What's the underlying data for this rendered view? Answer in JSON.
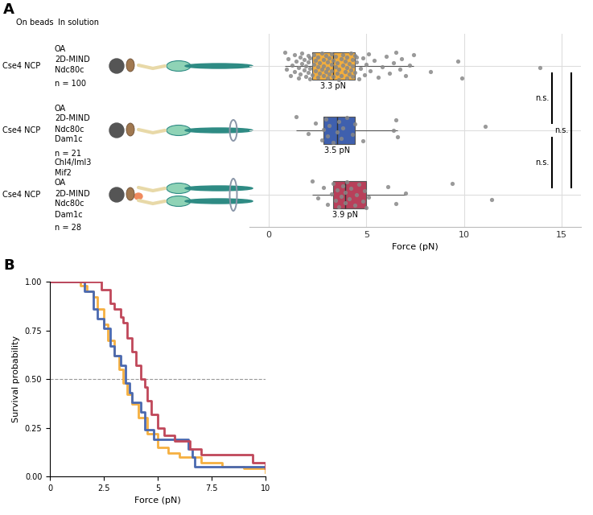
{
  "chart_data": [
    {
      "type": "box",
      "panel_label": "A",
      "orientation": "horizontal",
      "column_headers": [
        "On beads",
        "In solution"
      ],
      "xlabel": "Force (pN)",
      "xlim": [
        -1,
        16
      ],
      "xticks": [
        0,
        5,
        10,
        15
      ],
      "grid": true,
      "tick_labels": "x",
      "significance_labels": [
        "n.s.",
        "n.s.",
        "n.s."
      ],
      "series": [
        {
          "on_beads": "Cse4 NCP",
          "in_solution": [
            "OA",
            "2D-MIND",
            "Ndc80c"
          ],
          "n_label": "n = 100",
          "color": "#F3AE3D",
          "box": {
            "whisker_low": 0.8,
            "q1": 2.2,
            "median": 3.3,
            "q3": 4.4,
            "whisker_high": 7.4
          },
          "median_label": "3.3 pN",
          "values": [
            0.8,
            0.9,
            1.0,
            1.1,
            1.2,
            1.3,
            1.3,
            1.4,
            1.5,
            1.5,
            1.6,
            1.6,
            1.7,
            1.7,
            1.8,
            1.8,
            1.9,
            1.9,
            2.0,
            2.0,
            2.0,
            2.1,
            2.1,
            2.1,
            2.2,
            2.3,
            2.3,
            2.4,
            2.4,
            2.5,
            2.5,
            2.5,
            2.6,
            2.6,
            2.7,
            2.7,
            2.8,
            2.8,
            2.8,
            2.9,
            2.9,
            3.0,
            3.0,
            3.0,
            3.1,
            3.1,
            3.2,
            3.2,
            3.2,
            3.3,
            3.3,
            3.4,
            3.4,
            3.5,
            3.5,
            3.6,
            3.6,
            3.7,
            3.7,
            3.8,
            3.8,
            3.9,
            3.9,
            4.0,
            4.0,
            4.0,
            4.1,
            4.1,
            4.2,
            4.2,
            4.3,
            4.3,
            4.3,
            4.4,
            4.4,
            4.5,
            4.6,
            4.7,
            4.8,
            4.9,
            5.0,
            5.1,
            5.2,
            5.4,
            5.6,
            5.8,
            6.0,
            6.2,
            6.4,
            6.5,
            6.7,
            6.8,
            7.0,
            7.2,
            7.4,
            8.3,
            9.7,
            9.9,
            13.9,
            4.5
          ]
        },
        {
          "on_beads": "Cse4 NCP",
          "in_solution": [
            "OA",
            "2D-MIND",
            "Ndc80c",
            "Dam1c"
          ],
          "n_label": "n = 21",
          "color": "#3F60AE",
          "box": {
            "whisker_low": 1.4,
            "q1": 2.8,
            "median": 3.5,
            "q3": 4.4,
            "whisker_high": 6.6
          },
          "median_label": "3.5 pN",
          "values": [
            1.4,
            2.0,
            2.4,
            2.7,
            2.8,
            2.9,
            3.0,
            3.1,
            3.3,
            3.5,
            3.6,
            3.7,
            3.8,
            4.0,
            4.3,
            4.4,
            4.8,
            6.4,
            6.5,
            6.6,
            11.1
          ]
        },
        {
          "on_beads": "Cse4 NCP",
          "in_solution": [
            "Chl4/Iml3",
            "Mif2",
            "OA",
            "2D-MIND",
            "Ndc80c",
            "Dam1c"
          ],
          "n_label": "n = 28",
          "color": "#B8405A",
          "box": {
            "whisker_low": 2.2,
            "q1": 3.3,
            "median": 3.9,
            "q3": 5.0,
            "whisker_high": 7.0
          },
          "median_label": "3.9 pN",
          "values": [
            2.2,
            2.5,
            2.8,
            3.0,
            3.2,
            3.3,
            3.4,
            3.5,
            3.6,
            3.7,
            3.8,
            3.9,
            3.9,
            4.0,
            4.1,
            4.2,
            4.4,
            4.5,
            4.6,
            4.8,
            4.9,
            5.0,
            5.1,
            6.1,
            6.5,
            7.0,
            9.4,
            11.4
          ]
        }
      ]
    },
    {
      "type": "step",
      "panel_label": "B",
      "xlabel": "Force (pN)",
      "ylabel": "Survival probability",
      "xlim": [
        0,
        10
      ],
      "xticks": [
        0,
        2.5,
        5,
        7.5,
        10
      ],
      "ylim": [
        0,
        1
      ],
      "yticks": [
        {
          "value": 0,
          "label": "0.00"
        },
        {
          "value": 0.25,
          "label": "0.25"
        },
        {
          "value": 0.5,
          "label": "0.50"
        },
        {
          "value": 0.75,
          "label": "0.75"
        },
        {
          "value": 1,
          "label": "1.00"
        }
      ],
      "reference_line": 0.5,
      "series": [
        {
          "color": "#F5B041",
          "x": [
            0,
            1.4,
            1.7,
            2.0,
            2.2,
            2.5,
            2.7,
            3.0,
            3.2,
            3.4,
            3.6,
            3.8,
            4.1,
            4.5,
            5.0,
            5.5,
            6.0,
            7.0,
            8.0,
            9.0,
            10.0
          ],
          "values": [
            1.0,
            0.98,
            0.95,
            0.92,
            0.86,
            0.78,
            0.7,
            0.62,
            0.55,
            0.48,
            0.42,
            0.37,
            0.3,
            0.22,
            0.15,
            0.12,
            0.1,
            0.07,
            0.05,
            0.04,
            0.02
          ]
        },
        {
          "color": "#4A69B0",
          "x": [
            0,
            1.6,
            2.0,
            2.2,
            2.5,
            2.8,
            3.0,
            3.3,
            3.5,
            3.7,
            3.8,
            4.2,
            4.4,
            4.8,
            6.4,
            6.6,
            6.7,
            10.0
          ],
          "values": [
            1.0,
            0.95,
            0.86,
            0.81,
            0.76,
            0.67,
            0.62,
            0.57,
            0.48,
            0.43,
            0.38,
            0.33,
            0.24,
            0.19,
            0.14,
            0.1,
            0.05,
            0.05
          ]
        },
        {
          "color": "#C0475A",
          "x": [
            0,
            2.4,
            2.8,
            3.0,
            3.3,
            3.4,
            3.6,
            3.8,
            4.0,
            4.2,
            4.4,
            4.5,
            4.7,
            5.0,
            5.3,
            5.8,
            6.5,
            7.0,
            9.4,
            10.0
          ],
          "values": [
            1.0,
            0.96,
            0.89,
            0.86,
            0.82,
            0.79,
            0.71,
            0.64,
            0.57,
            0.5,
            0.46,
            0.39,
            0.32,
            0.25,
            0.21,
            0.18,
            0.14,
            0.11,
            0.07,
            0.04
          ]
        }
      ]
    }
  ]
}
